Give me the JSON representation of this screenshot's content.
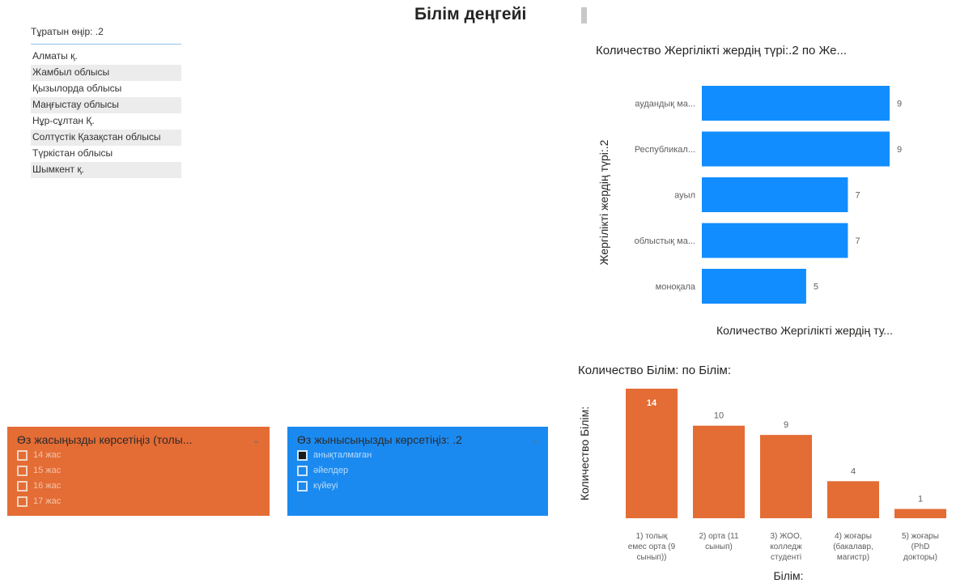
{
  "page": {
    "title": "Білім деңгейі"
  },
  "region_slicer": {
    "header": "Тұратын өңір: .2",
    "items": [
      "Алматы қ.",
      "Жамбыл облысы",
      "Қызылорда облысы",
      "Маңғыстау облысы",
      "Нұр-сұлтан Қ.",
      "Солтүстік Қазақстан облысы",
      "Түркістан облысы",
      "Шымкент қ."
    ]
  },
  "age_slicer": {
    "title": "Өз жасыңызды көрсетіңіз (толы...",
    "options": [
      "14 жас",
      "15 жас",
      "16 жас",
      "17 жас"
    ],
    "color": "#e46c35"
  },
  "gender_slicer": {
    "title": "Өз жынысыңызды көрсетіңіз: .2",
    "options": [
      "анықталмаған",
      "әйелдер",
      "күйеуі"
    ],
    "selected_index": 0,
    "color": "#1b8af0"
  },
  "chart_data": [
    {
      "type": "bar",
      "orientation": "horizontal",
      "title": "Количество Жергілікті жердің түрі:.2 по Же...",
      "ylabel": "Жергілікті жердің түрі:.2",
      "xlabel": "Количество Жергілікті жердің ту...",
      "categories": [
        "аудандық ма...",
        "Республикал...",
        "ауыл",
        "облыстық ма...",
        "моноқала"
      ],
      "values": [
        9,
        9,
        7,
        7,
        5
      ],
      "xlim": [
        0,
        9
      ],
      "color": "#118dff"
    },
    {
      "type": "bar",
      "orientation": "vertical",
      "title": "Количество Білім: по Білім:",
      "ylabel": "Количество Білім:",
      "xlabel": "Білім:",
      "categories": [
        [
          "1) толық",
          "емес орта (9",
          "сынып))"
        ],
        [
          "2) орта (11",
          "сынып)"
        ],
        [
          "3) ЖОО,",
          "колледж",
          "студенті"
        ],
        [
          "4) жоғары",
          "(бакалавр,",
          "магистр)"
        ],
        [
          "5) жоғары",
          "(PhD",
          "докторы)"
        ]
      ],
      "values": [
        14,
        10,
        9,
        4,
        1
      ],
      "ylim": [
        0,
        14
      ],
      "color": "#e46c35"
    }
  ]
}
